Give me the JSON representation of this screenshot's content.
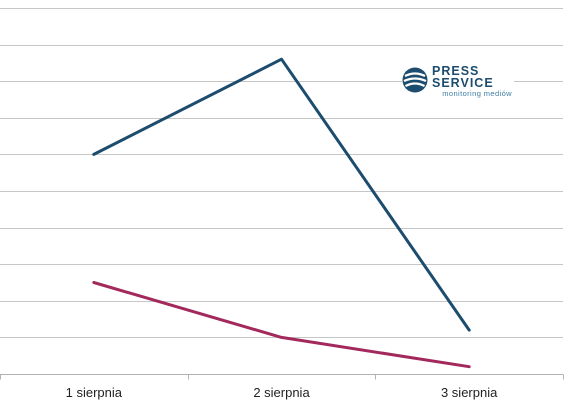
{
  "chart_data": {
    "type": "line",
    "title": "",
    "xlabel": "",
    "ylabel": "",
    "categories": [
      "1 sierpnia",
      "2 sierpnia",
      "3 sierpnia"
    ],
    "ylim": [
      0,
      10
    ],
    "grid": true,
    "legend": "none",
    "series": [
      {
        "color": "#1c4c6e",
        "values": [
          6,
          8.6,
          1.2
        ]
      },
      {
        "color": "#a3285c",
        "values": [
          2.5,
          1.0,
          0.2
        ]
      }
    ]
  },
  "logo": {
    "word1": "PRESS",
    "word2": "SERVICE",
    "tagline": "monitoring mediów"
  }
}
